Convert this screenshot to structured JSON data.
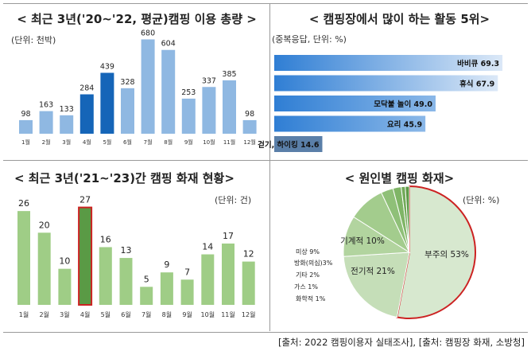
{
  "panels": {
    "p1_title": "< 최근 3년('20~'22, 평균)캠핑 이용 총량 >",
    "p1_unit": "(단위: 천박)",
    "p2_title": "< 캠핑장에서 많이 하는 활동 5위>",
    "p2_unit": "(중복응답, 단위: %)",
    "p3_title": "< 최근 3년('21~'23)간 캠핑 화재 현황>",
    "p3_unit": "(단위: 건)",
    "p4_title": "< 원인별 캠핑 화재>",
    "p4_unit": "(단위: %)"
  },
  "source": "[출처: 2022 캠핑이용자 실태조사], [출처: 캠핑장 화재, 소방청]",
  "colors": {
    "bar_light_blue": "#8fb8e2",
    "bar_highlight_blue": "#1565b8",
    "hbar_blue": "#4b8fd6",
    "hbar_grey_blue": "#5a7fa8",
    "bar_green": "#9fcd86",
    "bar_dark_green": "#5a9a45",
    "highlight_border": "#cc2222",
    "pie_main": "#d7e8cf"
  },
  "chart_data": [
    {
      "type": "bar",
      "title": "< 최근 3년('20~'22, 평균)캠핑 이용 총량 >",
      "unit": "(단위: 천박)",
      "categories": [
        "1월",
        "2월",
        "3월",
        "4월",
        "5월",
        "6월",
        "7월",
        "8월",
        "9월",
        "10월",
        "11월",
        "12월"
      ],
      "values": [
        98,
        163,
        133,
        284,
        439,
        328,
        680,
        604,
        253,
        337,
        385,
        98
      ],
      "highlight": [
        "4월",
        "5월"
      ],
      "ylim": [
        0,
        700
      ]
    },
    {
      "type": "bar",
      "orientation": "horizontal",
      "title": "< 캠핑장에서 많이 하는 활동 5위>",
      "unit": "(중복응답, 단위: %)",
      "categories": [
        "바비큐",
        "휴식",
        "모닥불 놀이",
        "요리",
        "걷기, 하이킹"
      ],
      "values": [
        69.3,
        67.9,
        49.0,
        45.9,
        14.6
      ],
      "value_labels": [
        "69.3",
        "67.9",
        "49.0",
        "45.9",
        "14.6"
      ],
      "xlim": [
        0,
        70
      ]
    },
    {
      "type": "bar",
      "title": "< 최근 3년('21~'23)간 캠핑 화재 현황>",
      "unit": "(단위: 건)",
      "categories": [
        "1월",
        "2월",
        "3월",
        "4월",
        "5월",
        "6월",
        "7월",
        "8월",
        "9월",
        "10월",
        "11월",
        "12월"
      ],
      "values": [
        26,
        20,
        10,
        27,
        16,
        13,
        5,
        9,
        7,
        14,
        17,
        12
      ],
      "highlight": [
        "4월"
      ],
      "ylim": [
        0,
        30
      ]
    },
    {
      "type": "pie",
      "title": "< 원인별 캠핑 화재>",
      "unit": "(단위: %)",
      "slices": [
        {
          "label": "부주의 53%",
          "value": 53
        },
        {
          "label": "전기적 21%",
          "value": 21
        },
        {
          "label": "기계적 10%",
          "value": 10
        },
        {
          "label": "미상 9%",
          "value": 9
        },
        {
          "label": "방화(의심)3%",
          "value": 3
        },
        {
          "label": "기타 2%",
          "value": 2
        },
        {
          "label": "가스 1%",
          "value": 1
        },
        {
          "label": "화학적 1%",
          "value": 1
        }
      ]
    }
  ]
}
